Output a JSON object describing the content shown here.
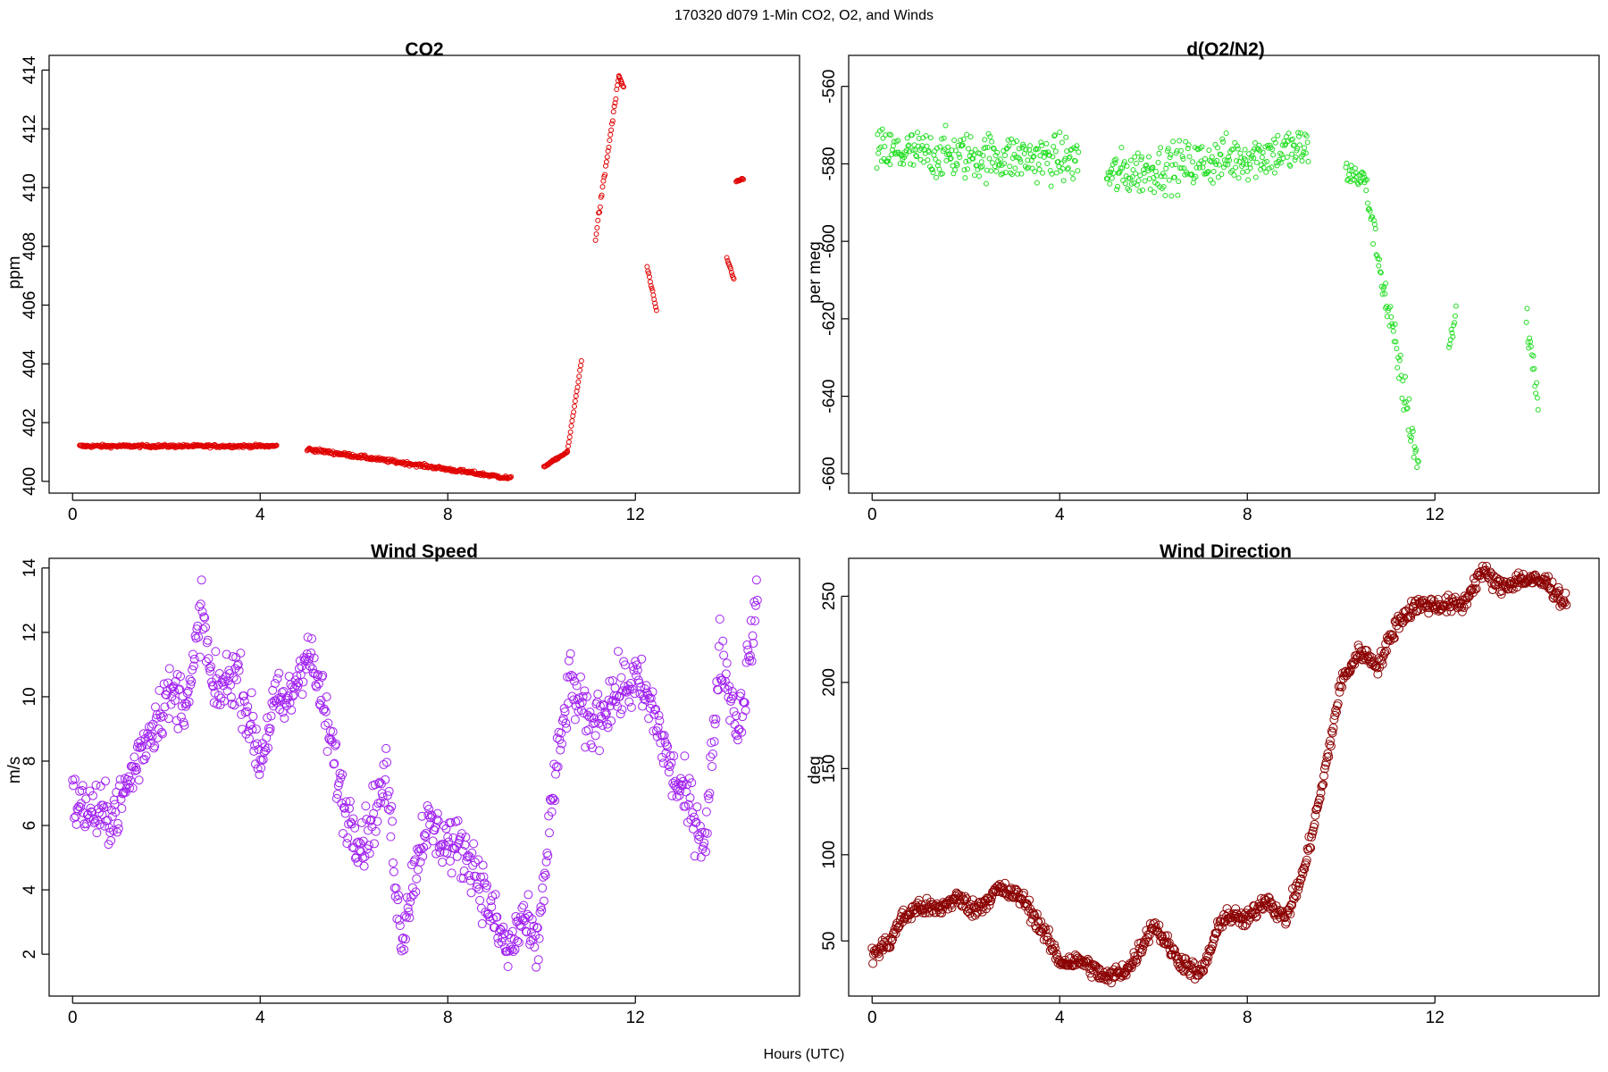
{
  "figure": {
    "suptitle": "170320   d079   1-Min CO2, O2, and Winds",
    "xlabel": "Hours (UTC)"
  },
  "chart_data": [
    {
      "type": "scatter",
      "title": "CO2",
      "xlabel": "",
      "ylabel": "ppm",
      "xlim": [
        -0.5,
        15.5
      ],
      "ylim": [
        399.6,
        414.5
      ],
      "xticks": [
        0,
        4,
        8,
        12
      ],
      "yticks": [
        400,
        402,
        404,
        406,
        408,
        410,
        412,
        414
      ],
      "marker_color": "#e00000",
      "segments": [
        {
          "x": [
            0.15,
            4.35
          ],
          "y": [
            401.2,
            401.2
          ],
          "wiggle": 0.05
        },
        {
          "x": [
            5.0,
            9.35
          ],
          "y": [
            401.1,
            400.1
          ],
          "wiggle": 0.06
        },
        {
          "x": [
            10.05,
            10.55
          ],
          "y": [
            400.5,
            401.0
          ],
          "wiggle": 0.03
        },
        {
          "x": [
            10.55,
            10.85
          ],
          "y": [
            401.0,
            404.1
          ],
          "wiggle": 0.05
        },
        {
          "x": [
            11.15,
            11.65
          ],
          "y": [
            408.3,
            413.8
          ],
          "wiggle": 0.1
        },
        {
          "x": [
            11.65,
            11.75
          ],
          "y": [
            413.8,
            413.4
          ],
          "wiggle": 0.05
        },
        {
          "x": [
            12.25,
            12.45
          ],
          "y": [
            407.3,
            405.8
          ],
          "wiggle": 0.05
        },
        {
          "x": [
            13.95,
            14.1
          ],
          "y": [
            407.6,
            406.9
          ],
          "wiggle": 0.05
        },
        {
          "x": [
            14.15,
            14.3
          ],
          "y": [
            410.2,
            410.3
          ],
          "wiggle": 0.03
        }
      ]
    },
    {
      "type": "scatter",
      "title": "d(O2/N2)",
      "xlabel": "",
      "ylabel": "per meg",
      "xlim": [
        -0.5,
        15.5
      ],
      "ylim": [
        -665,
        -552
      ],
      "xticks": [
        0,
        4,
        8,
        12
      ],
      "yticks": [
        -560,
        -580,
        -600,
        -620,
        -640,
        -660
      ],
      "marker_color": "#22dd22",
      "segments": [
        {
          "x": [
            0.1,
            4.4
          ],
          "y": [
            -577,
            -579
          ],
          "wiggle": 6
        },
        {
          "x": [
            5.0,
            9.3
          ],
          "y": [
            -583,
            -576
          ],
          "wiggle": 6
        },
        {
          "x": [
            10.1,
            10.5
          ],
          "y": [
            -582,
            -584
          ],
          "wiggle": 3
        },
        {
          "x": [
            10.5,
            10.95
          ],
          "y": [
            -584,
            -615
          ],
          "wiggle": 4
        },
        {
          "x": [
            10.95,
            11.65
          ],
          "y": [
            -615,
            -658
          ],
          "wiggle": 6
        },
        {
          "x": [
            12.3,
            12.45
          ],
          "y": [
            -628,
            -618
          ],
          "wiggle": 3
        },
        {
          "x": [
            13.95,
            14.2
          ],
          "y": [
            -620,
            -640
          ],
          "wiggle": 5
        }
      ]
    },
    {
      "type": "scatter",
      "title": "Wind Speed",
      "xlabel": "",
      "ylabel": "m/s",
      "xlim": [
        -0.5,
        15.5
      ],
      "ylim": [
        0.7,
        14.3
      ],
      "xticks": [
        0,
        4,
        8,
        12
      ],
      "yticks": [
        2,
        4,
        6,
        8,
        10,
        12,
        14
      ],
      "marker_color": "#a020f0",
      "x": [
        0,
        0.5,
        0.7,
        1.0,
        1.5,
        2.0,
        2.5,
        2.75,
        3.0,
        3.5,
        4.0,
        4.3,
        4.6,
        5.0,
        5.3,
        5.8,
        6.2,
        6.7,
        7.0,
        7.5,
        8.0,
        8.5,
        9.0,
        9.3,
        9.6,
        9.9,
        10.2,
        10.6,
        11.0,
        11.5,
        12.0,
        12.4,
        12.8,
        13.2,
        13.5,
        13.8,
        14.2,
        14.6
      ],
      "y": [
        6.7,
        6.4,
        6.2,
        6.6,
        8.5,
        10.0,
        10.0,
        12.8,
        10.0,
        10.8,
        8.0,
        9.8,
        9.8,
        11.5,
        10.0,
        6.5,
        5.5,
        7.5,
        2.5,
        6.0,
        5.5,
        5.0,
        3.0,
        2.0,
        3.2,
        2.0,
        6.5,
        10.5,
        9.0,
        10.0,
        10.5,
        9.5,
        7.5,
        6.5,
        5.5,
        11.5,
        9.0,
        13.0
      ],
      "scatter": 0.9
    },
    {
      "type": "scatter",
      "title": "Wind Direction",
      "xlabel": "",
      "ylabel": "deg",
      "xlim": [
        -0.5,
        15.5
      ],
      "ylim": [
        18,
        272
      ],
      "xticks": [
        0,
        4,
        8,
        12
      ],
      "yticks": [
        50,
        100,
        150,
        200,
        250
      ],
      "marker_color": "#8b0000",
      "x": [
        0,
        0.4,
        0.6,
        1.0,
        1.4,
        1.8,
        2.2,
        2.7,
        3.2,
        3.6,
        4.0,
        4.5,
        5.0,
        5.5,
        6.0,
        6.5,
        7.0,
        7.5,
        8.0,
        8.4,
        8.8,
        9.2,
        9.6,
        10.0,
        10.4,
        10.8,
        11.2,
        11.6,
        12.0,
        12.6,
        13.0,
        13.4,
        13.8,
        14.4,
        14.8
      ],
      "y": [
        42,
        50,
        62,
        70,
        68,
        75,
        68,
        80,
        75,
        58,
        38,
        38,
        28,
        35,
        60,
        40,
        30,
        65,
        62,
        75,
        62,
        90,
        140,
        200,
        218,
        210,
        235,
        245,
        245,
        245,
        265,
        255,
        260,
        258,
        245
      ],
      "scatter": 5
    }
  ]
}
